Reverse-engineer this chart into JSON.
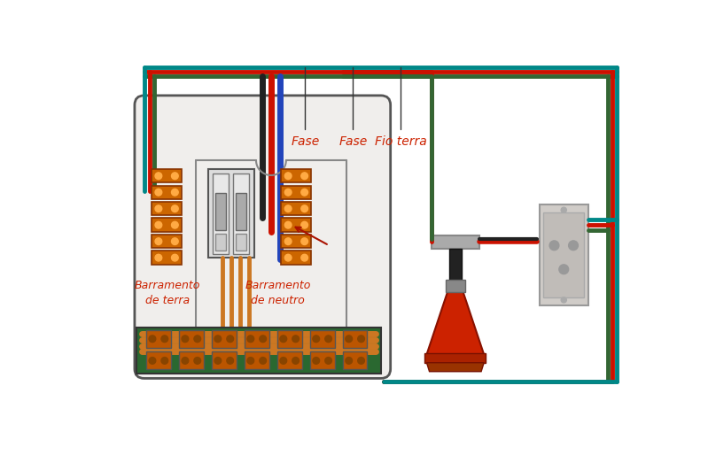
{
  "bg": "#ffffff",
  "lc": "#cc2200",
  "wire_red": "#cc1100",
  "wire_green": "#336633",
  "wire_dark": "#222222",
  "wire_blue": "#2244bb",
  "wire_orange": "#cc7722",
  "panel_fill": "#f0eeec",
  "panel_edge": "#555555",
  "term_fill": "#cc6600",
  "term_edge": "#883300",
  "term_hole": "#ffaa44",
  "cb_fill": "#dddddd",
  "cb_edge": "#555555",
  "bbus_fill": "#2a6830",
  "outlet_fill": "#d0ccc8",
  "outlet_edge": "#999999",
  "lamp_red": "#cc2200",
  "lamp_dark": "#222222",
  "lamp_gray": "#aaaaaa",
  "label_fase1": "Fase",
  "label_fase2": "Fase",
  "label_fio_terra": "Fio terra",
  "label_bt": "Barramento\nde terra",
  "label_bn": "Barramento\nde neutro"
}
